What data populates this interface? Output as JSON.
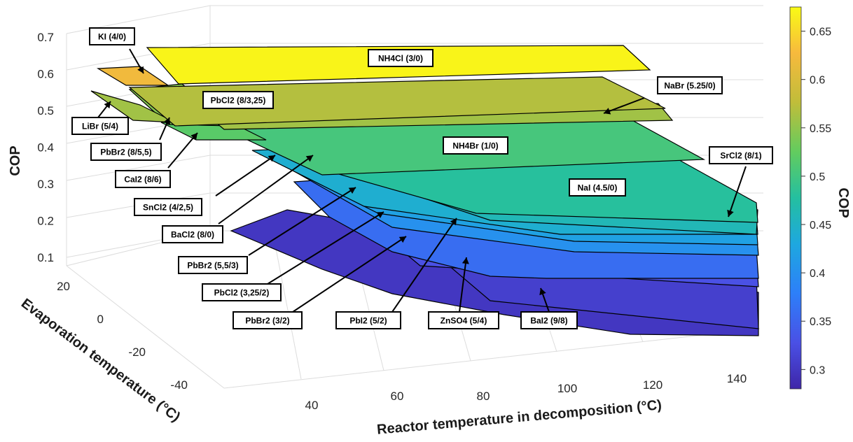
{
  "chart_data": {
    "type": "surface3d",
    "xlabel": "Reactor temperature in decomposition (°C)",
    "ylabel": "Evaporation temperature (°C)",
    "zlabel": "COP",
    "colorbar_label": "COP",
    "x_ticks": [
      "40",
      "60",
      "80",
      "100",
      "120",
      "140"
    ],
    "y_ticks": [
      "20",
      "0",
      "-20",
      "-40"
    ],
    "z_ticks": [
      "0.1",
      "0.2",
      "0.3",
      "0.4",
      "0.5",
      "0.6",
      "0.7"
    ],
    "colorbar_ticks": [
      "0.3",
      "0.35",
      "0.4",
      "0.45",
      "0.5",
      "0.55",
      "0.6",
      "0.65"
    ],
    "zlim": [
      0.1,
      0.7
    ],
    "clim": [
      0.28,
      0.675
    ],
    "colormap": [
      "#3e26a8",
      "#4a50e5",
      "#2d7ff9",
      "#1ea8df",
      "#24bfa0",
      "#62cc5f",
      "#c0bd3a",
      "#f7ba3d",
      "#f9fb15"
    ],
    "grid": true,
    "surfaces": [
      {
        "label": "NH4Cl (3/0)",
        "cop": 0.67
      },
      {
        "label": "KI (4/0)",
        "cop": 0.62
      },
      {
        "label": "PbCl2 (8/3,25)",
        "cop": 0.57
      },
      {
        "label": "NaBr (5.25/0)",
        "cop": 0.56
      },
      {
        "label": "LiBr (5/4)",
        "cop": 0.56
      },
      {
        "label": "PbBr2 (8/5,5)",
        "cop": 0.545
      },
      {
        "label": "CaI2 (8/6)",
        "cop": 0.52
      },
      {
        "label": "BaCl2 (8/0)",
        "cop": 0.505
      },
      {
        "label": "PbBr2 (5,5/3)",
        "cop": 0.49
      },
      {
        "label": "NH4Br (1/0)",
        "cop": 0.48
      },
      {
        "label": "SrCl2 (8/1)",
        "cop": 0.475
      },
      {
        "label": "NaI (4.5/0)",
        "cop": 0.46
      },
      {
        "label": "SnCl2 (4/2,5)",
        "cop": 0.44
      },
      {
        "label": "PbCl2 (3,25/2)",
        "cop": 0.42
      },
      {
        "label": "PbBr2 (3/2)",
        "cop": 0.41
      },
      {
        "label": "PbI2 (5/2)",
        "cop": 0.4
      },
      {
        "label": "ZnSO4 (5/4)",
        "cop": 0.33
      },
      {
        "label": "BaI2 (9/8)",
        "cop": 0.31
      }
    ]
  }
}
